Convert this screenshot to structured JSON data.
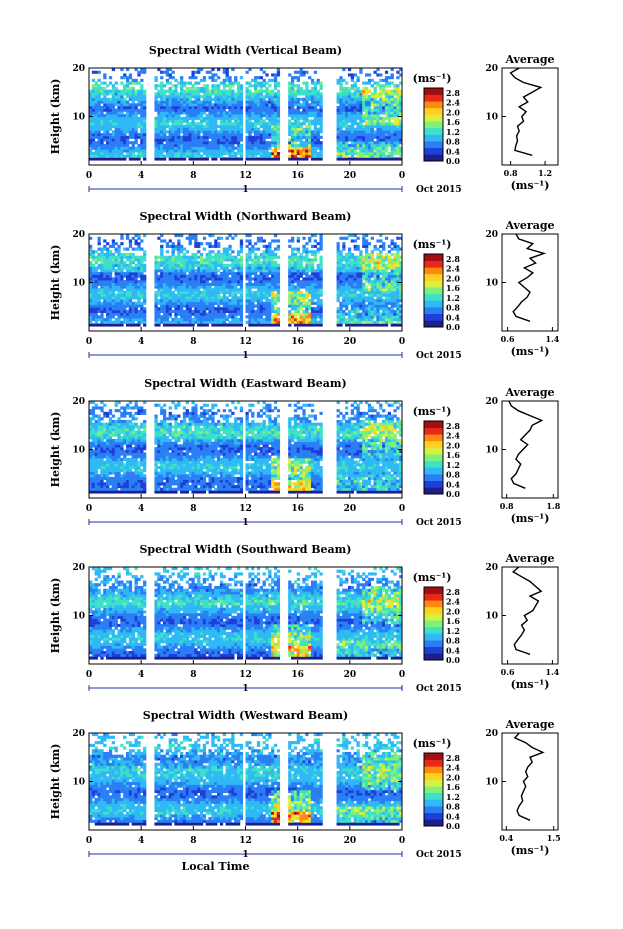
{
  "chart_data": [
    {
      "type": "heatmap",
      "title": "Spectral Width (Vertical Beam)",
      "ylabel": "Height (km)",
      "xlabel": "",
      "units": "(ms⁻¹)",
      "date_label": "Oct 2015",
      "day_label": "1",
      "x_ticks": [
        "0",
        "4",
        "8",
        "12",
        "16",
        "20",
        "0"
      ],
      "y_ticks": [
        "10",
        "20"
      ],
      "xlim": [
        0,
        24
      ],
      "ylim": [
        0,
        20
      ],
      "colorbar_ticks": [
        "0.0",
        "0.4",
        "0.8",
        "1.2",
        "1.6",
        "2.0",
        "2.4",
        "2.8"
      ],
      "colorbar_range": [
        0,
        3.0
      ],
      "data_gaps_hours": [
        [
          4.4,
          5.0
        ],
        [
          11.7,
          12.0
        ],
        [
          14.6,
          15.2
        ],
        [
          18.0,
          18.9
        ]
      ],
      "average": {
        "title": "Average",
        "xlabel": "(ms⁻¹)",
        "x_ticks": [
          "0.8",
          "1.2"
        ],
        "xlim": [
          0.7,
          1.35
        ],
        "y_ticks": [
          "10",
          "20"
        ],
        "heights": [
          2,
          3,
          4,
          5,
          6,
          7,
          8,
          9,
          10,
          11,
          12,
          13,
          14,
          15,
          16,
          17,
          18,
          19,
          20
        ],
        "values": [
          1.05,
          0.85,
          0.86,
          0.88,
          0.87,
          0.9,
          0.88,
          0.95,
          0.93,
          0.98,
          0.9,
          1.0,
          0.95,
          1.05,
          1.15,
          0.95,
          0.85,
          0.8,
          0.9
        ]
      }
    },
    {
      "type": "heatmap",
      "title": "Spectral Width (Northward Beam)",
      "ylabel": "Height (km)",
      "xlabel": "",
      "units": "(ms⁻¹)",
      "date_label": "Oct 2015",
      "day_label": "1",
      "x_ticks": [
        "0",
        "4",
        "8",
        "12",
        "16",
        "20",
        "0"
      ],
      "y_ticks": [
        "10",
        "20"
      ],
      "xlim": [
        0,
        24
      ],
      "ylim": [
        0,
        20
      ],
      "colorbar_ticks": [
        "0.0",
        "0.4",
        "0.8",
        "1.2",
        "1.6",
        "2.0",
        "2.4",
        "2.8"
      ],
      "colorbar_range": [
        0,
        3.0
      ],
      "data_gaps_hours": [
        [
          4.4,
          5.0
        ],
        [
          11.7,
          12.0
        ],
        [
          14.6,
          15.2
        ],
        [
          18.0,
          18.9
        ]
      ],
      "average": {
        "title": "Average",
        "xlabel": "(ms⁻¹)",
        "x_ticks": [
          "0.6",
          "1.4"
        ],
        "xlim": [
          0.5,
          1.5
        ],
        "y_ticks": [
          "10",
          "20"
        ],
        "heights": [
          2,
          3,
          4,
          5,
          6,
          7,
          8,
          9,
          10,
          11,
          12,
          13,
          14,
          15,
          16,
          17,
          18,
          19,
          20
        ],
        "values": [
          1.0,
          0.75,
          0.7,
          0.78,
          0.85,
          0.95,
          1.0,
          0.9,
          0.8,
          0.95,
          1.05,
          0.9,
          1.1,
          1.0,
          1.25,
          0.95,
          1.05,
          0.8,
          0.75
        ]
      }
    },
    {
      "type": "heatmap",
      "title": "Spectral Width (Eastward Beam)",
      "ylabel": "Height (km)",
      "xlabel": "",
      "units": "(ms⁻¹)",
      "date_label": "Oct 2015",
      "day_label": "1",
      "x_ticks": [
        "0",
        "4",
        "8",
        "12",
        "16",
        "20",
        "0"
      ],
      "y_ticks": [
        "10",
        "20"
      ],
      "xlim": [
        0,
        24
      ],
      "ylim": [
        0,
        20
      ],
      "colorbar_ticks": [
        "0.0",
        "0.4",
        "0.8",
        "1.2",
        "1.6",
        "2.0",
        "2.4",
        "2.8"
      ],
      "colorbar_range": [
        0,
        3.0
      ],
      "data_gaps_hours": [
        [
          4.4,
          5.0
        ],
        [
          11.7,
          12.0
        ],
        [
          14.6,
          15.2
        ],
        [
          18.0,
          18.9
        ]
      ],
      "average": {
        "title": "Average",
        "xlabel": "(ms⁻¹)",
        "x_ticks": [
          "0.8",
          "1.8"
        ],
        "xlim": [
          0.7,
          1.9
        ],
        "y_ticks": [
          "10",
          "20"
        ],
        "heights": [
          2,
          3,
          4,
          5,
          6,
          7,
          8,
          9,
          10,
          11,
          12,
          13,
          14,
          15,
          16,
          17,
          18,
          19,
          20
        ],
        "values": [
          1.2,
          0.95,
          0.9,
          1.0,
          1.05,
          1.1,
          1.0,
          1.05,
          1.15,
          1.25,
          1.1,
          1.2,
          1.3,
          1.35,
          1.55,
          1.3,
          1.05,
          0.9,
          0.85
        ]
      }
    },
    {
      "type": "heatmap",
      "title": "Spectral Width (Southward Beam)",
      "ylabel": "Height (km)",
      "xlabel": "",
      "units": "(ms⁻¹)",
      "date_label": "Oct 2015",
      "day_label": "1",
      "x_ticks": [
        "0",
        "4",
        "8",
        "12",
        "16",
        "20",
        "0"
      ],
      "y_ticks": [
        "10",
        "20"
      ],
      "xlim": [
        0,
        24
      ],
      "ylim": [
        0,
        20
      ],
      "colorbar_ticks": [
        "0.0",
        "0.4",
        "0.8",
        "1.2",
        "1.6",
        "2.0",
        "2.4",
        "2.8"
      ],
      "colorbar_range": [
        0,
        3.0
      ],
      "data_gaps_hours": [
        [
          4.4,
          5.0
        ],
        [
          11.7,
          12.0
        ],
        [
          14.6,
          15.2
        ],
        [
          18.0,
          18.9
        ]
      ],
      "average": {
        "title": "Average",
        "xlabel": "(ms⁻¹)",
        "x_ticks": [
          "0.6",
          "1.4"
        ],
        "xlim": [
          0.5,
          1.5
        ],
        "y_ticks": [
          "10",
          "20"
        ],
        "heights": [
          2,
          3,
          4,
          5,
          6,
          7,
          8,
          9,
          10,
          11,
          12,
          13,
          14,
          15,
          16,
          17,
          18,
          19,
          20
        ],
        "values": [
          1.0,
          0.75,
          0.72,
          0.78,
          0.85,
          0.9,
          0.85,
          0.95,
          0.9,
          1.05,
          1.1,
          1.15,
          1.0,
          1.2,
          1.1,
          1.0,
          0.85,
          0.7,
          0.8
        ]
      }
    },
    {
      "type": "heatmap",
      "title": "Spectral Width (Westward Beam)",
      "ylabel": "Height (km)",
      "xlabel": "Local Time",
      "units": "(ms⁻¹)",
      "date_label": "Oct 2015",
      "day_label": "1",
      "x_ticks": [
        "0",
        "4",
        "8",
        "12",
        "16",
        "20",
        "0"
      ],
      "y_ticks": [
        "10",
        "20"
      ],
      "xlim": [
        0,
        24
      ],
      "ylim": [
        0,
        20
      ],
      "colorbar_ticks": [
        "0.0",
        "0.4",
        "0.8",
        "1.2",
        "1.6",
        "2.0",
        "2.4",
        "2.8"
      ],
      "colorbar_range": [
        0,
        3.0
      ],
      "data_gaps_hours": [
        [
          4.4,
          5.0
        ],
        [
          11.7,
          12.0
        ],
        [
          14.6,
          15.2
        ],
        [
          18.0,
          18.9
        ]
      ],
      "average": {
        "title": "Average",
        "xlabel": "(ms⁻¹)",
        "x_ticks": [
          "0.4",
          "1.5"
        ],
        "xlim": [
          0.3,
          1.6
        ],
        "y_ticks": [
          "10",
          "20"
        ],
        "heights": [
          2,
          3,
          4,
          5,
          6,
          7,
          8,
          9,
          10,
          11,
          12,
          13,
          14,
          15,
          16,
          17,
          18,
          19,
          20
        ],
        "values": [
          0.95,
          0.7,
          0.65,
          0.7,
          0.78,
          0.75,
          0.8,
          0.85,
          0.8,
          0.9,
          0.85,
          0.9,
          1.0,
          0.95,
          1.25,
          1.0,
          0.85,
          0.6,
          0.7
        ]
      }
    }
  ],
  "colors": {
    "colormap": [
      "#1e1e8c",
      "#1f3fd9",
      "#2b7ff5",
      "#2fb9f5",
      "#3fe0c8",
      "#7ff07a",
      "#d8f040",
      "#ffd020",
      "#ff8a10",
      "#e8281a",
      "#a01010"
    ]
  }
}
